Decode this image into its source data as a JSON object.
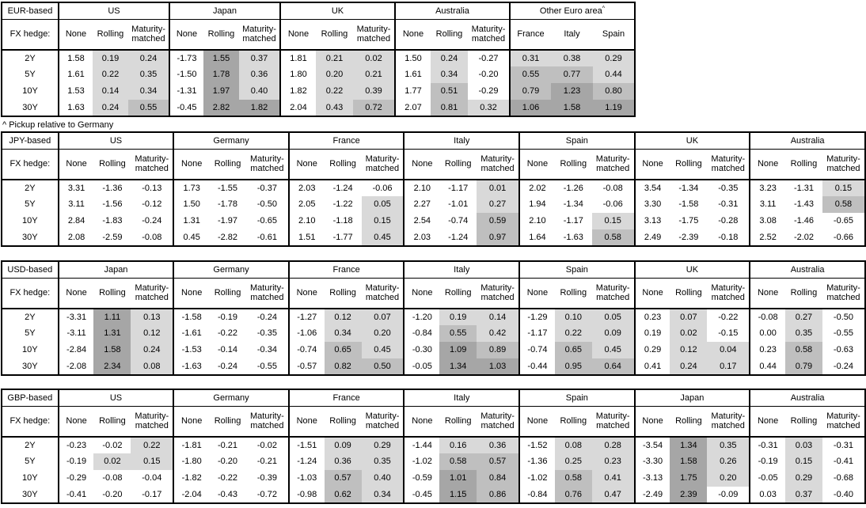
{
  "footnote": "^ Pickup relative to Germany",
  "labels": {
    "fx_hedge": "FX hedge:",
    "hedge_columns": [
      "None",
      "Rolling",
      "Maturity-matched"
    ],
    "tenors": [
      "2Y",
      "5Y",
      "10Y",
      "30Y"
    ]
  },
  "colors": {
    "background": "#ffffff",
    "border": "#000000",
    "shade_light": "#d9d9d9",
    "shade_medium": "#bfbfbf",
    "shade_dark": "#a6a6a6"
  },
  "tables": [
    {
      "base": "EUR-based",
      "groups": [
        {
          "country": "US",
          "values": [
            [
              "1.58",
              "0.19",
              "0.24"
            ],
            [
              "1.61",
              "0.22",
              "0.35"
            ],
            [
              "1.53",
              "0.14",
              "0.34"
            ],
            [
              "1.63",
              "0.24",
              "0.55"
            ]
          ]
        },
        {
          "country": "Japan",
          "values": [
            [
              "-1.73",
              "1.55",
              "0.37"
            ],
            [
              "-1.50",
              "1.78",
              "0.36"
            ],
            [
              "-1.31",
              "1.97",
              "0.40"
            ],
            [
              "-0.45",
              "2.82",
              "1.82"
            ]
          ]
        },
        {
          "country": "UK",
          "values": [
            [
              "1.81",
              "0.21",
              "0.02"
            ],
            [
              "1.80",
              "0.20",
              "0.21"
            ],
            [
              "1.82",
              "0.22",
              "0.39"
            ],
            [
              "2.04",
              "0.43",
              "0.72"
            ]
          ]
        },
        {
          "country": "Australia",
          "values": [
            [
              "1.50",
              "0.24",
              "-0.27"
            ],
            [
              "1.61",
              "0.34",
              "-0.20"
            ],
            [
              "1.77",
              "0.51",
              "-0.29"
            ],
            [
              "2.07",
              "0.81",
              "0.32"
            ]
          ]
        },
        {
          "country": "Other Euro area",
          "superscript": "^",
          "columns": [
            "France",
            "Italy",
            "Spain"
          ],
          "shade_all_columns": true,
          "values": [
            [
              "0.31",
              "0.38",
              "0.29"
            ],
            [
              "0.55",
              "0.77",
              "0.44"
            ],
            [
              "0.79",
              "1.23",
              "0.80"
            ],
            [
              "1.06",
              "1.58",
              "1.19"
            ]
          ]
        }
      ]
    },
    {
      "base": "JPY-based",
      "groups": [
        {
          "country": "US",
          "values": [
            [
              "3.31",
              "-1.36",
              "-0.13"
            ],
            [
              "3.11",
              "-1.56",
              "-0.12"
            ],
            [
              "2.84",
              "-1.83",
              "-0.24"
            ],
            [
              "2.08",
              "-2.59",
              "-0.08"
            ]
          ]
        },
        {
          "country": "Germany",
          "values": [
            [
              "1.73",
              "-1.55",
              "-0.37"
            ],
            [
              "1.50",
              "-1.78",
              "-0.50"
            ],
            [
              "1.31",
              "-1.97",
              "-0.65"
            ],
            [
              "0.45",
              "-2.82",
              "-0.61"
            ]
          ]
        },
        {
          "country": "France",
          "values": [
            [
              "2.03",
              "-1.24",
              "-0.06"
            ],
            [
              "2.05",
              "-1.22",
              "0.05"
            ],
            [
              "2.10",
              "-1.18",
              "0.15"
            ],
            [
              "1.51",
              "-1.77",
              "0.45"
            ]
          ]
        },
        {
          "country": "Italy",
          "values": [
            [
              "2.10",
              "-1.17",
              "0.01"
            ],
            [
              "2.27",
              "-1.01",
              "0.27"
            ],
            [
              "2.54",
              "-0.74",
              "0.59"
            ],
            [
              "2.03",
              "-1.24",
              "0.97"
            ]
          ]
        },
        {
          "country": "Spain",
          "values": [
            [
              "2.02",
              "-1.26",
              "-0.08"
            ],
            [
              "1.94",
              "-1.34",
              "-0.06"
            ],
            [
              "2.10",
              "-1.17",
              "0.15"
            ],
            [
              "1.64",
              "-1.63",
              "0.58"
            ]
          ]
        },
        {
          "country": "UK",
          "values": [
            [
              "3.54",
              "-1.34",
              "-0.35"
            ],
            [
              "3.30",
              "-1.58",
              "-0.31"
            ],
            [
              "3.13",
              "-1.75",
              "-0.28"
            ],
            [
              "2.49",
              "-2.39",
              "-0.18"
            ]
          ]
        },
        {
          "country": "Australia",
          "values": [
            [
              "3.23",
              "-1.31",
              "0.15"
            ],
            [
              "3.11",
              "-1.43",
              "0.58"
            ],
            [
              "3.08",
              "-1.46",
              "-0.65"
            ],
            [
              "2.52",
              "-2.02",
              "-0.66"
            ]
          ]
        }
      ]
    },
    {
      "base": "USD-based",
      "groups": [
        {
          "country": "Japan",
          "values": [
            [
              "-3.31",
              "1.11",
              "0.13"
            ],
            [
              "-3.11",
              "1.31",
              "0.12"
            ],
            [
              "-2.84",
              "1.58",
              "0.24"
            ],
            [
              "-2.08",
              "2.34",
              "0.08"
            ]
          ]
        },
        {
          "country": "Germany",
          "values": [
            [
              "-1.58",
              "-0.19",
              "-0.24"
            ],
            [
              "-1.61",
              "-0.22",
              "-0.35"
            ],
            [
              "-1.53",
              "-0.14",
              "-0.34"
            ],
            [
              "-1.63",
              "-0.24",
              "-0.55"
            ]
          ]
        },
        {
          "country": "France",
          "values": [
            [
              "-1.27",
              "0.12",
              "0.07"
            ],
            [
              "-1.06",
              "0.34",
              "0.20"
            ],
            [
              "-0.74",
              "0.65",
              "0.45"
            ],
            [
              "-0.57",
              "0.82",
              "0.50"
            ]
          ]
        },
        {
          "country": "Italy",
          "values": [
            [
              "-1.20",
              "0.19",
              "0.14"
            ],
            [
              "-0.84",
              "0.55",
              "0.42"
            ],
            [
              "-0.30",
              "1.09",
              "0.89"
            ],
            [
              "-0.05",
              "1.34",
              "1.03"
            ]
          ]
        },
        {
          "country": "Spain",
          "values": [
            [
              "-1.29",
              "0.10",
              "0.05"
            ],
            [
              "-1.17",
              "0.22",
              "0.09"
            ],
            [
              "-0.74",
              "0.65",
              "0.45"
            ],
            [
              "-0.44",
              "0.95",
              "0.64"
            ]
          ]
        },
        {
          "country": "UK",
          "values": [
            [
              "0.23",
              "0.07",
              "-0.22"
            ],
            [
              "0.19",
              "0.02",
              "-0.15"
            ],
            [
              "0.29",
              "0.12",
              "0.04"
            ],
            [
              "0.41",
              "0.24",
              "0.17"
            ]
          ]
        },
        {
          "country": "Australia",
          "values": [
            [
              "-0.08",
              "0.27",
              "-0.50"
            ],
            [
              "0.00",
              "0.35",
              "-0.55"
            ],
            [
              "0.23",
              "0.58",
              "-0.63"
            ],
            [
              "0.44",
              "0.79",
              "-0.24"
            ]
          ]
        }
      ]
    },
    {
      "base": "GBP-based",
      "groups": [
        {
          "country": "US",
          "values": [
            [
              "-0.23",
              "-0.02",
              "0.22"
            ],
            [
              "-0.19",
              "0.02",
              "0.15"
            ],
            [
              "-0.29",
              "-0.08",
              "-0.04"
            ],
            [
              "-0.41",
              "-0.20",
              "-0.17"
            ]
          ]
        },
        {
          "country": "Germany",
          "values": [
            [
              "-1.81",
              "-0.21",
              "-0.02"
            ],
            [
              "-1.80",
              "-0.20",
              "-0.21"
            ],
            [
              "-1.82",
              "-0.22",
              "-0.39"
            ],
            [
              "-2.04",
              "-0.43",
              "-0.72"
            ]
          ]
        },
        {
          "country": "France",
          "values": [
            [
              "-1.51",
              "0.09",
              "0.29"
            ],
            [
              "-1.24",
              "0.36",
              "0.35"
            ],
            [
              "-1.03",
              "0.57",
              "0.40"
            ],
            [
              "-0.98",
              "0.62",
              "0.34"
            ]
          ]
        },
        {
          "country": "Italy",
          "values": [
            [
              "-1.44",
              "0.16",
              "0.36"
            ],
            [
              "-1.02",
              "0.58",
              "0.57"
            ],
            [
              "-0.59",
              "1.01",
              "0.84"
            ],
            [
              "-0.45",
              "1.15",
              "0.86"
            ]
          ]
        },
        {
          "country": "Spain",
          "values": [
            [
              "-1.52",
              "0.08",
              "0.28"
            ],
            [
              "-1.36",
              "0.25",
              "0.23"
            ],
            [
              "-1.02",
              "0.58",
              "0.41"
            ],
            [
              "-0.84",
              "0.76",
              "0.47"
            ]
          ]
        },
        {
          "country": "Japan",
          "values": [
            [
              "-3.54",
              "1.34",
              "0.35"
            ],
            [
              "-3.30",
              "1.58",
              "0.26"
            ],
            [
              "-3.13",
              "1.75",
              "0.20"
            ],
            [
              "-2.49",
              "2.39",
              "-0.09"
            ]
          ]
        },
        {
          "country": "Australia",
          "values": [
            [
              "-0.31",
              "0.03",
              "-0.31"
            ],
            [
              "-0.19",
              "0.15",
              "-0.41"
            ],
            [
              "-0.05",
              "0.29",
              "-0.68"
            ],
            [
              "0.03",
              "0.37",
              "-0.40"
            ]
          ]
        }
      ]
    }
  ]
}
